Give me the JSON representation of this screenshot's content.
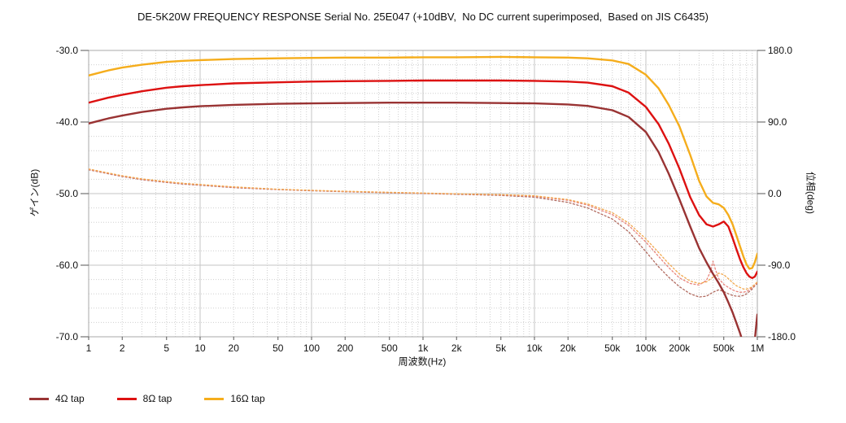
{
  "chart_data": {
    "type": "line",
    "title": "DE-5K20W FREQUENCY RESPONSE Serial No. 25E047 (+10dBV,  No DC current superimposed,  Based on JIS C6435)",
    "x_label": "周波数(Hz)",
    "y_left_label": "ゲイン(dB)",
    "y_right_label": "位相(deg)",
    "x_scale": "log",
    "x_range": [
      1,
      1000000
    ],
    "y_left_range": [
      -70,
      -30
    ],
    "y_right_range": [
      -180,
      180
    ],
    "grid": {
      "major": true,
      "minor": true,
      "y_left_minor_step": 2,
      "x_minor": "log subdivisions 2-9 per decade"
    },
    "x_ticks": [
      {
        "v": 1,
        "label": "1"
      },
      {
        "v": 2,
        "label": "2"
      },
      {
        "v": 5,
        "label": "5"
      },
      {
        "v": 10,
        "label": "10"
      },
      {
        "v": 20,
        "label": "20"
      },
      {
        "v": 50,
        "label": "50"
      },
      {
        "v": 100,
        "label": "100"
      },
      {
        "v": 200,
        "label": "200"
      },
      {
        "v": 500,
        "label": "500"
      },
      {
        "v": 1000,
        "label": "1k"
      },
      {
        "v": 2000,
        "label": "2k"
      },
      {
        "v": 5000,
        "label": "5k"
      },
      {
        "v": 10000,
        "label": "10k"
      },
      {
        "v": 20000,
        "label": "20k"
      },
      {
        "v": 50000,
        "label": "50k"
      },
      {
        "v": 100000,
        "label": "100k"
      },
      {
        "v": 200000,
        "label": "200k"
      },
      {
        "v": 500000,
        "label": "500k"
      },
      {
        "v": 1000000,
        "label": "1M"
      }
    ],
    "y_left_ticks": [
      {
        "v": -30,
        "label": "-30.0"
      },
      {
        "v": -40,
        "label": "-40.0"
      },
      {
        "v": -50,
        "label": "-50.0"
      },
      {
        "v": -60,
        "label": "-60.0"
      },
      {
        "v": -70,
        "label": "-70.0"
      }
    ],
    "y_right_ticks": [
      {
        "v": 180,
        "label": "180.0"
      },
      {
        "v": 90,
        "label": "90.0"
      },
      {
        "v": 0,
        "label": "0.0"
      },
      {
        "v": -90,
        "label": "-90.0"
      },
      {
        "v": -180,
        "label": "-180.0"
      }
    ],
    "legend": [
      {
        "label": "4Ω tap",
        "color": "#993333"
      },
      {
        "label": "8Ω tap",
        "color": "#dd1111"
      },
      {
        "label": "16Ω tap",
        "color": "#f5ad1c"
      }
    ],
    "series": [
      {
        "id": "phase-4ohm-tap",
        "name": "4Ω tap phase",
        "axis": "right",
        "unit": "deg",
        "style": "dotted",
        "color": "#b16a5f",
        "x": [
          1,
          1.5,
          2,
          3,
          5,
          7,
          10,
          20,
          50,
          100,
          200,
          500,
          1000,
          2000,
          5000,
          10000,
          20000,
          30000,
          50000,
          70000,
          100000,
          130000,
          160000,
          200000,
          250000,
          300000,
          350000,
          400000,
          450000,
          500000,
          550000,
          600000,
          650000,
          700000,
          750000,
          800000,
          850000,
          900000,
          950000,
          1000000
        ],
        "y": [
          30,
          25,
          21.5,
          17.5,
          14,
          12,
          10.5,
          7.5,
          5,
          3.6,
          2.4,
          1.0,
          0.1,
          -0.9,
          -2.2,
          -4.5,
          -11,
          -18,
          -32,
          -48,
          -73,
          -92,
          -105,
          -117,
          -126,
          -130,
          -129,
          -124,
          -121,
          -123,
          -126,
          -128,
          -129,
          -129,
          -128,
          -126,
          -123,
          -120,
          -116,
          -113
        ]
      },
      {
        "id": "phase-8ohm-tap",
        "name": "8Ω tap phase",
        "axis": "right",
        "unit": "deg",
        "style": "dotted",
        "color": "#e8837a",
        "x": [
          1,
          1.5,
          2,
          3,
          5,
          7,
          10,
          20,
          50,
          100,
          200,
          500,
          1000,
          2000,
          5000,
          10000,
          20000,
          30000,
          50000,
          70000,
          100000,
          130000,
          160000,
          200000,
          250000,
          300000,
          350000,
          380000,
          400000,
          420000,
          450000,
          500000,
          550000,
          600000,
          650000,
          700000,
          750000,
          800000,
          850000,
          900000,
          950000,
          1000000
        ],
        "y": [
          30.5,
          25.5,
          22,
          18,
          14.5,
          12.5,
          11,
          8,
          5.2,
          3.9,
          2.7,
          1.3,
          0.4,
          -0.5,
          -1.6,
          -3.4,
          -8.5,
          -14.5,
          -26.5,
          -40,
          -61,
          -79,
          -93,
          -106,
          -113,
          -115,
          -109,
          -98,
          -85,
          -95,
          -107,
          -114,
          -118,
          -121,
          -123,
          -124,
          -124,
          -123,
          -121,
          -118,
          -115,
          -112
        ]
      },
      {
        "id": "phase-16ohm-tap",
        "name": "16Ω tap phase",
        "axis": "right",
        "unit": "deg",
        "style": "dotted",
        "color": "#f2a94e",
        "x": [
          1,
          1.5,
          2,
          3,
          5,
          7,
          10,
          20,
          50,
          100,
          200,
          500,
          1000,
          2000,
          5000,
          10000,
          20000,
          30000,
          50000,
          70000,
          100000,
          130000,
          160000,
          200000,
          250000,
          300000,
          350000,
          400000,
          450000,
          500000,
          550000,
          600000,
          650000,
          700000,
          750000,
          800000,
          850000,
          900000,
          950000,
          1000000
        ],
        "y": [
          31,
          26,
          22.5,
          18.5,
          15,
          13,
          11.5,
          8.5,
          5.5,
          4.2,
          3.0,
          1.6,
          0.7,
          -0.2,
          -1.2,
          -2.8,
          -7.5,
          -13,
          -24,
          -37,
          -57,
          -74,
          -88,
          -101,
          -110,
          -113,
          -111,
          -105,
          -100,
          -102,
          -107,
          -112,
          -116,
          -118,
          -120,
          -120,
          -119,
          -117,
          -114,
          -111
        ]
      },
      {
        "id": "gain-4ohm-tap",
        "name": "4Ω tap gain",
        "axis": "left",
        "unit": "dB",
        "style": "solid",
        "color": "#993333",
        "x": [
          1,
          1.5,
          2,
          3,
          5,
          7,
          10,
          20,
          50,
          100,
          200,
          500,
          1000,
          2000,
          5000,
          10000,
          20000,
          30000,
          50000,
          70000,
          100000,
          130000,
          160000,
          200000,
          250000,
          300000,
          350000,
          400000,
          450000,
          500000,
          550000,
          600000,
          650000,
          700000,
          750000,
          800000,
          850000,
          900000,
          950000,
          1000000
        ],
        "y": [
          -40.2,
          -39.5,
          -39.1,
          -38.6,
          -38.15,
          -37.95,
          -37.8,
          -37.6,
          -37.45,
          -37.4,
          -37.35,
          -37.3,
          -37.3,
          -37.3,
          -37.35,
          -37.4,
          -37.55,
          -37.75,
          -38.35,
          -39.3,
          -41.4,
          -44.2,
          -47.2,
          -50.8,
          -54.6,
          -57.6,
          -59.6,
          -61.2,
          -62.5,
          -63.8,
          -65.2,
          -66.6,
          -68.1,
          -69.5,
          -71.0,
          -72.4,
          -73.2,
          -72.6,
          -70.4,
          -66.9
        ]
      },
      {
        "id": "gain-8ohm-tap",
        "name": "8Ω tap gain",
        "axis": "left",
        "unit": "dB",
        "style": "solid",
        "color": "#dd1111",
        "x": [
          1,
          1.5,
          2,
          3,
          5,
          7,
          10,
          20,
          50,
          100,
          200,
          500,
          1000,
          2000,
          5000,
          10000,
          20000,
          30000,
          50000,
          70000,
          100000,
          130000,
          160000,
          200000,
          250000,
          300000,
          350000,
          400000,
          450000,
          500000,
          550000,
          600000,
          650000,
          700000,
          750000,
          800000,
          850000,
          900000,
          950000,
          1000000
        ],
        "y": [
          -37.3,
          -36.6,
          -36.2,
          -35.7,
          -35.2,
          -35.0,
          -34.85,
          -34.6,
          -34.45,
          -34.35,
          -34.3,
          -34.25,
          -34.2,
          -34.2,
          -34.2,
          -34.25,
          -34.35,
          -34.5,
          -35.0,
          -35.9,
          -37.9,
          -40.3,
          -43.0,
          -46.5,
          -50.5,
          -53.0,
          -54.3,
          -54.6,
          -54.3,
          -53.9,
          -54.6,
          -56.2,
          -57.8,
          -59.2,
          -60.3,
          -61.1,
          -61.6,
          -61.8,
          -61.6,
          -60.9
        ]
      },
      {
        "id": "gain-16ohm-tap",
        "name": "16Ω tap gain",
        "axis": "left",
        "unit": "dB",
        "style": "solid",
        "color": "#f5ad1c",
        "x": [
          1,
          1.5,
          2,
          3,
          5,
          7,
          10,
          20,
          50,
          100,
          200,
          500,
          1000,
          2000,
          5000,
          10000,
          20000,
          30000,
          50000,
          70000,
          100000,
          130000,
          160000,
          200000,
          250000,
          300000,
          350000,
          400000,
          450000,
          500000,
          550000,
          600000,
          650000,
          700000,
          750000,
          800000,
          850000,
          900000,
          950000,
          1000000
        ],
        "y": [
          -33.5,
          -32.8,
          -32.4,
          -32.0,
          -31.6,
          -31.45,
          -31.35,
          -31.2,
          -31.1,
          -31.05,
          -31.0,
          -31.0,
          -30.95,
          -30.95,
          -30.9,
          -30.95,
          -31.0,
          -31.1,
          -31.4,
          -31.9,
          -33.4,
          -35.3,
          -37.6,
          -40.6,
          -44.6,
          -48.2,
          -50.4,
          -51.3,
          -51.5,
          -52.0,
          -53.0,
          -54.3,
          -55.9,
          -57.4,
          -58.8,
          -59.9,
          -60.5,
          -60.4,
          -59.6,
          -58.4
        ]
      }
    ]
  },
  "style": {
    "grid_major_color": "#c6c6c6",
    "grid_minor_color": "#cfcfcf",
    "border_color": "#aaaaaa",
    "tick_color": "#555555",
    "background": "#ffffff"
  }
}
